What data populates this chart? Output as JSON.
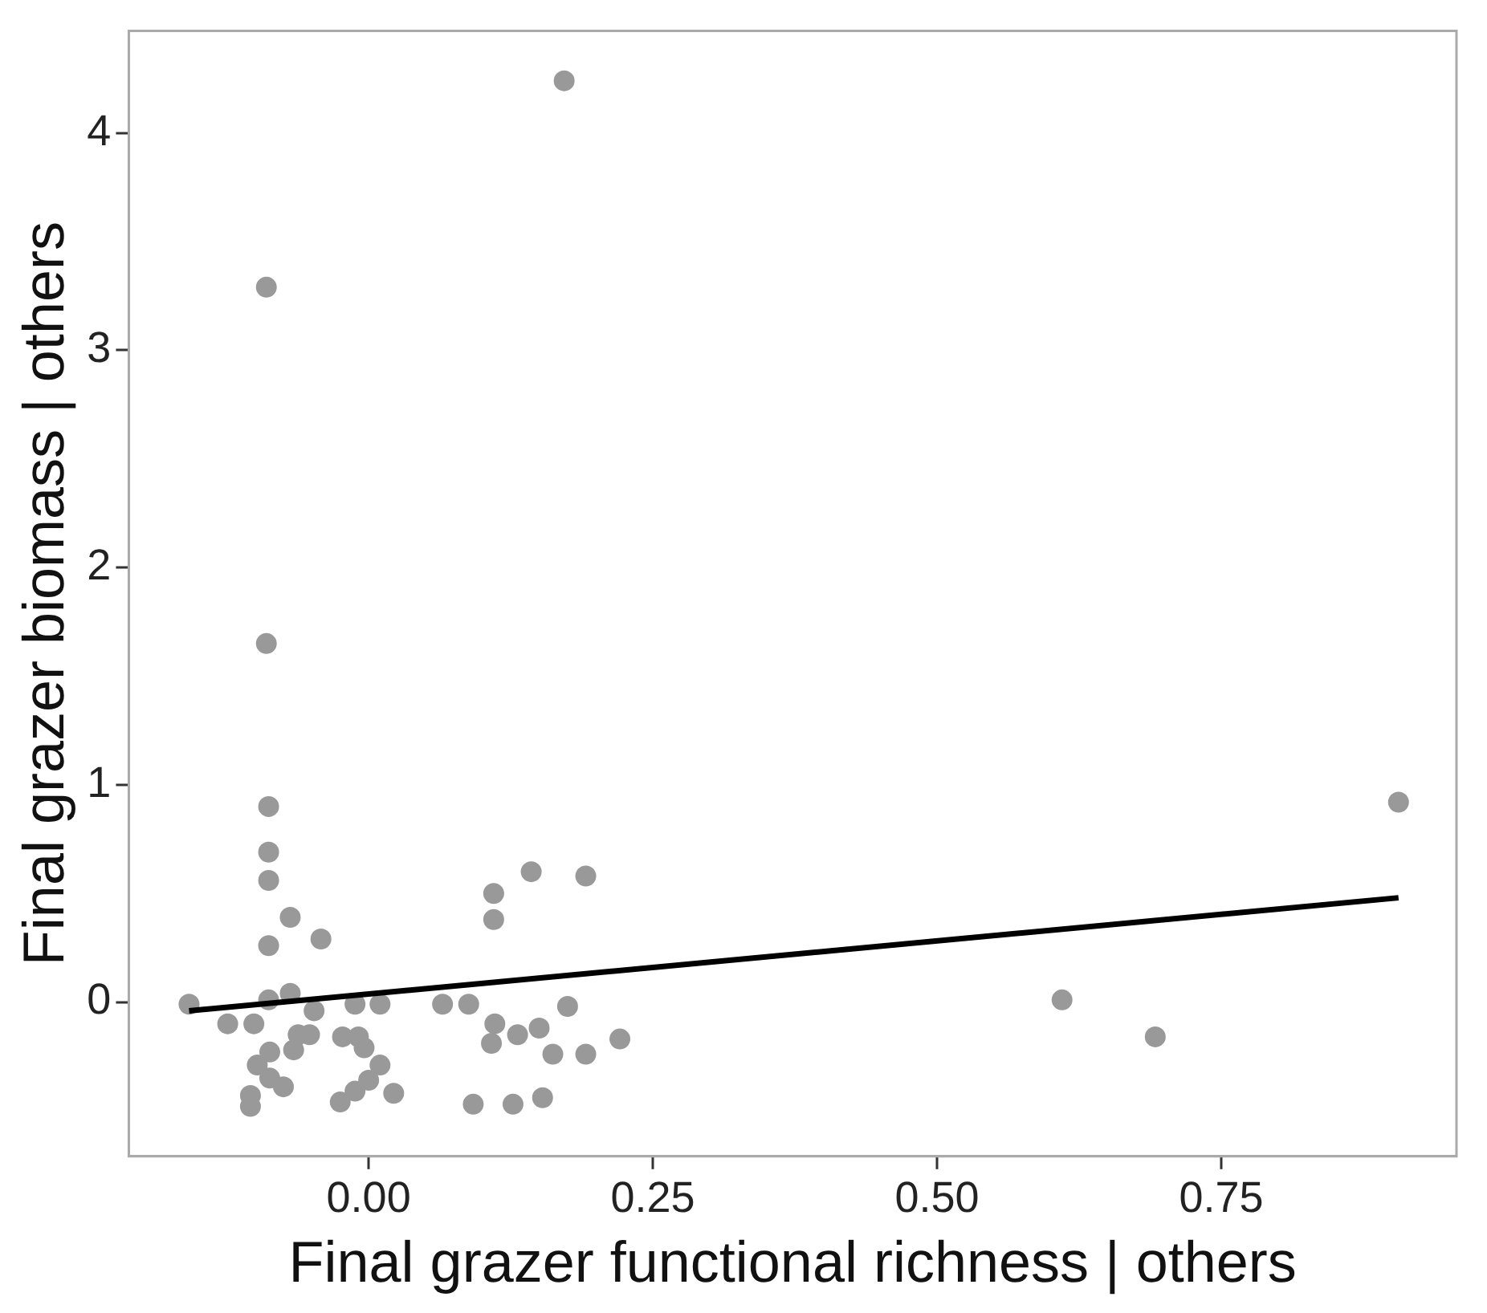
{
  "chart_data": {
    "type": "scatter",
    "xlabel": "Final grazer functional richness | others",
    "ylabel": "Final grazer biomass | others",
    "xlim": [
      -0.211,
      0.957
    ],
    "ylim": [
      -0.71,
      4.47
    ],
    "xticks": [
      {
        "value": 0,
        "label": "0.00"
      },
      {
        "value": 0.25,
        "label": "0.25"
      },
      {
        "value": 0.5,
        "label": "0.50"
      },
      {
        "value": 0.75,
        "label": "0.75"
      }
    ],
    "yticks": [
      0,
      1,
      2,
      3,
      4
    ],
    "grid": false,
    "legend": false,
    "marker": "circle",
    "series": [
      {
        "type": "scatter",
        "color": "#999999",
        "x": [
          0.172,
          -0.09,
          -0.09,
          -0.088,
          -0.088,
          -0.088,
          -0.069,
          -0.088,
          -0.042,
          0.11,
          0.11,
          0.143,
          0.191,
          -0.158,
          -0.124,
          -0.101,
          -0.088,
          -0.069,
          -0.048,
          -0.012,
          0.01,
          0.065,
          0.088,
          0.175,
          0.111,
          0.108,
          0.131,
          0.15,
          0.162,
          0.191,
          0.221,
          0.092,
          0.127,
          0.153,
          -0.062,
          -0.052,
          -0.066,
          -0.087,
          -0.098,
          -0.087,
          -0.075,
          -0.104,
          -0.104,
          -0.023,
          -0.009,
          -0.004,
          0.01,
          0.0,
          -0.012,
          -0.025,
          0.022,
          0.906,
          0.61,
          0.692
        ],
        "values": [
          4.24,
          3.29,
          1.65,
          0.9,
          0.69,
          0.56,
          0.39,
          0.26,
          0.29,
          0.5,
          0.38,
          0.6,
          0.58,
          -0.01,
          -0.1,
          -0.1,
          0.01,
          0.04,
          -0.04,
          -0.01,
          -0.01,
          -0.01,
          -0.01,
          -0.02,
          -0.1,
          -0.19,
          -0.15,
          -0.12,
          -0.24,
          -0.24,
          -0.17,
          -0.47,
          -0.47,
          -0.44,
          -0.15,
          -0.15,
          -0.22,
          -0.23,
          -0.29,
          -0.35,
          -0.39,
          -0.43,
          -0.48,
          -0.16,
          -0.16,
          -0.21,
          -0.29,
          -0.36,
          -0.41,
          -0.46,
          -0.42,
          0.92,
          0.01,
          -0.16
        ]
      },
      {
        "type": "line",
        "color": "#000000",
        "marker": "none",
        "line_style": "solid",
        "x": [
          -0.158,
          0.906
        ],
        "values": [
          -0.04,
          0.48
        ]
      }
    ]
  }
}
